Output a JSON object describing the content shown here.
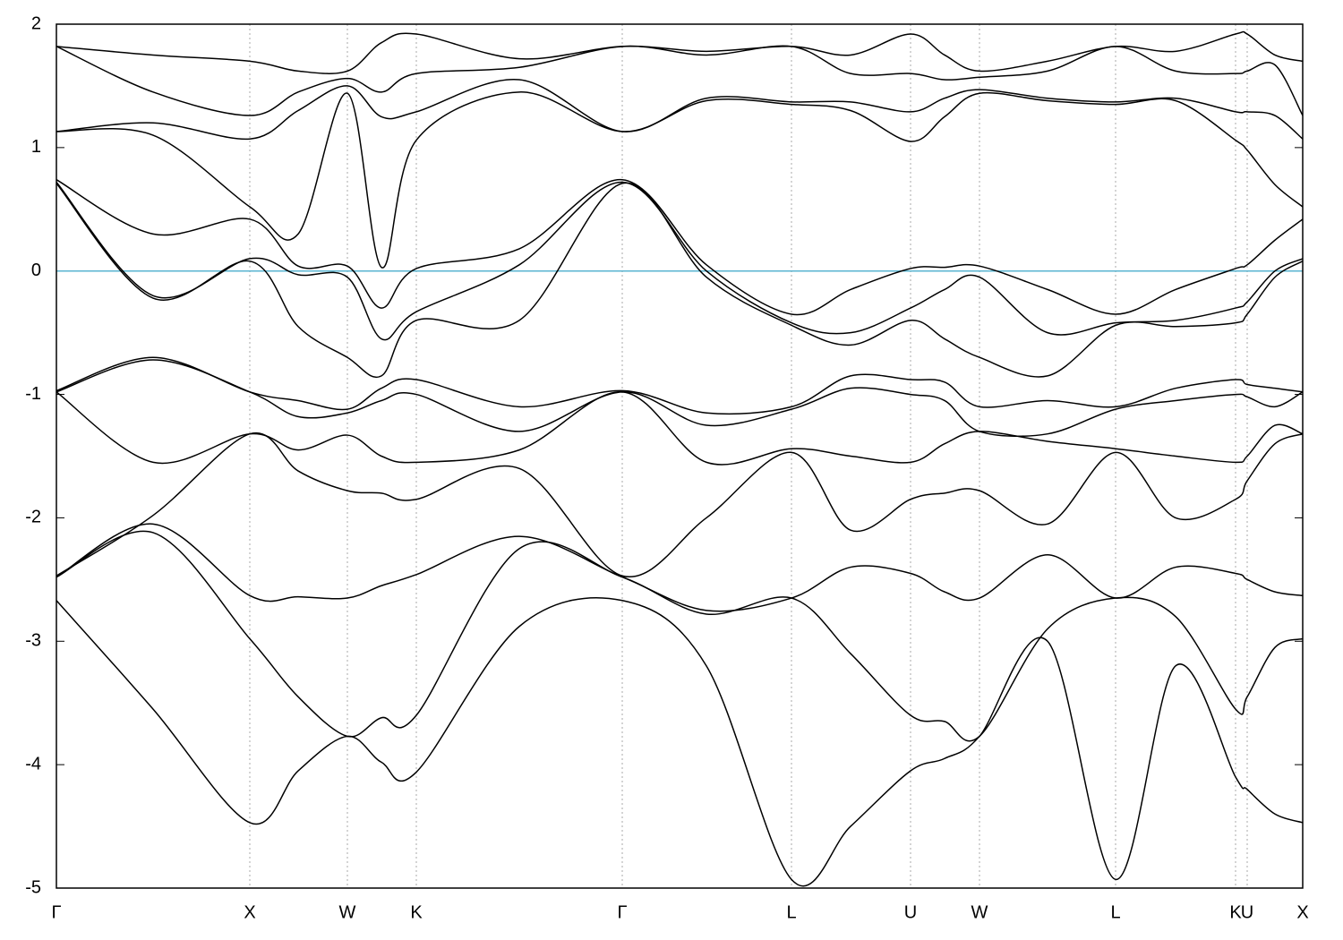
{
  "chart_data": {
    "type": "line",
    "x": [
      0,
      108,
      216,
      270,
      325,
      363,
      402,
      517,
      632,
      726,
      821,
      887,
      954,
      992,
      1031,
      1107,
      1183,
      1250,
      1317,
      1330,
      1361,
      1392
    ],
    "xlim": [
      0,
      1392
    ],
    "xticks": [
      {
        "value": 0,
        "label": "Γ"
      },
      {
        "value": 216,
        "label": "X"
      },
      {
        "value": 325,
        "label": "W"
      },
      {
        "value": 402,
        "label": "K"
      },
      {
        "value": 632,
        "label": "Γ"
      },
      {
        "value": 821,
        "label": "L"
      },
      {
        "value": 954,
        "label": "U"
      },
      {
        "value": 1031,
        "label": "W"
      },
      {
        "value": 1183,
        "label": "L"
      },
      {
        "value": 1317,
        "label": "K"
      },
      {
        "value": 1330,
        "label": "U"
      },
      {
        "value": 1392,
        "label": "X"
      }
    ],
    "ylim": [
      -5,
      2
    ],
    "yticks": [
      -5,
      -4,
      -3,
      -2,
      -1,
      0,
      1,
      2
    ],
    "x_grid": true,
    "color": "#000000",
    "reference_line": 0,
    "reference_color": "#5ab4d0",
    "series": [
      {
        "values": [
          -2.67,
          -3.55,
          -4.47,
          -4.05,
          -3.77,
          -3.98,
          -4.06,
          -2.88,
          -2.67,
          -3.2,
          -4.93,
          -4.5,
          -4.05,
          -3.95,
          -3.77,
          -3.0,
          -4.93,
          -3.2,
          -4.1,
          -4.2,
          -4.4,
          -4.47
        ]
      },
      {
        "values": [
          -2.48,
          -2.12,
          -2.98,
          -3.45,
          -3.77,
          -3.62,
          -3.6,
          -2.25,
          -2.48,
          -2.78,
          -2.65,
          -3.1,
          -3.6,
          -3.65,
          -3.77,
          -2.9,
          -2.65,
          -2.8,
          -3.55,
          -3.45,
          -3.05,
          -2.98
        ]
      },
      {
        "values": [
          -2.48,
          -2.05,
          -2.63,
          -2.64,
          -2.65,
          -2.55,
          -2.46,
          -2.15,
          -2.48,
          -2.75,
          -2.65,
          -2.4,
          -2.45,
          -2.6,
          -2.65,
          -2.3,
          -2.65,
          -2.4,
          -2.45,
          -2.5,
          -2.6,
          -2.63
        ]
      },
      {
        "values": [
          -2.47,
          -1.98,
          -1.32,
          -1.62,
          -1.78,
          -1.8,
          -1.85,
          -1.6,
          -2.47,
          -2.0,
          -1.47,
          -2.1,
          -1.85,
          -1.8,
          -1.78,
          -2.05,
          -1.47,
          -2.0,
          -1.85,
          -1.7,
          -1.4,
          -1.32
        ]
      },
      {
        "values": [
          -0.98,
          -1.55,
          -1.32,
          -1.45,
          -1.33,
          -1.5,
          -1.55,
          -1.45,
          -0.98,
          -1.55,
          -1.44,
          -1.5,
          -1.55,
          -1.4,
          -1.3,
          -1.38,
          -1.44,
          -1.5,
          -1.55,
          -1.5,
          -1.25,
          -1.32
        ]
      },
      {
        "values": [
          -0.98,
          -0.72,
          -0.98,
          -1.18,
          -1.15,
          -1.05,
          -1.0,
          -1.3,
          -0.98,
          -1.25,
          -1.12,
          -0.95,
          -1.0,
          -1.05,
          -1.3,
          -1.32,
          -1.12,
          -1.05,
          -1.0,
          -1.02,
          -1.1,
          -0.98
        ]
      },
      {
        "values": [
          -0.97,
          -0.7,
          -0.98,
          -1.05,
          -1.12,
          -0.95,
          -0.88,
          -1.1,
          -0.97,
          -1.15,
          -1.1,
          -0.85,
          -0.88,
          -0.9,
          -1.1,
          -1.05,
          -1.1,
          -0.95,
          -0.88,
          -0.92,
          -0.95,
          -0.98
        ]
      },
      {
        "values": [
          0.71,
          -0.22,
          0.08,
          -0.45,
          -0.7,
          -0.85,
          -0.4,
          -0.4,
          0.71,
          -0.05,
          -0.44,
          -0.6,
          -0.4,
          -0.55,
          -0.7,
          -0.85,
          -0.44,
          -0.45,
          -0.42,
          -0.35,
          -0.05,
          0.08
        ]
      },
      {
        "values": [
          0.72,
          -0.2,
          0.1,
          -0.03,
          -0.05,
          -0.55,
          -0.33,
          0.05,
          0.72,
          0.0,
          -0.42,
          -0.5,
          -0.3,
          -0.15,
          -0.05,
          -0.5,
          -0.42,
          -0.4,
          -0.3,
          -0.25,
          0.0,
          0.1
        ]
      },
      {
        "values": [
          0.74,
          0.3,
          0.42,
          0.04,
          0.04,
          -0.3,
          0.02,
          0.18,
          0.74,
          0.05,
          -0.35,
          -0.15,
          0.02,
          0.03,
          0.04,
          -0.15,
          -0.35,
          -0.15,
          0.02,
          0.05,
          0.25,
          0.42
        ]
      },
      {
        "values": [
          1.13,
          1.1,
          0.52,
          0.3,
          1.44,
          0.03,
          1.06,
          1.45,
          1.13,
          1.38,
          1.35,
          1.3,
          1.05,
          1.25,
          1.44,
          1.38,
          1.35,
          1.38,
          1.06,
          0.98,
          0.7,
          0.52
        ]
      },
      {
        "values": [
          1.13,
          1.2,
          1.07,
          1.3,
          1.5,
          1.25,
          1.29,
          1.55,
          1.13,
          1.4,
          1.37,
          1.37,
          1.29,
          1.4,
          1.47,
          1.4,
          1.37,
          1.4,
          1.29,
          1.29,
          1.26,
          1.07
        ]
      },
      {
        "values": [
          1.82,
          1.45,
          1.26,
          1.45,
          1.56,
          1.45,
          1.6,
          1.65,
          1.82,
          1.75,
          1.82,
          1.6,
          1.6,
          1.55,
          1.57,
          1.62,
          1.82,
          1.62,
          1.6,
          1.62,
          1.67,
          1.26
        ]
      },
      {
        "values": [
          1.82,
          1.75,
          1.7,
          1.62,
          1.62,
          1.85,
          1.92,
          1.72,
          1.82,
          1.78,
          1.82,
          1.75,
          1.92,
          1.75,
          1.62,
          1.7,
          1.82,
          1.78,
          1.92,
          1.92,
          1.75,
          1.7
        ]
      }
    ]
  }
}
